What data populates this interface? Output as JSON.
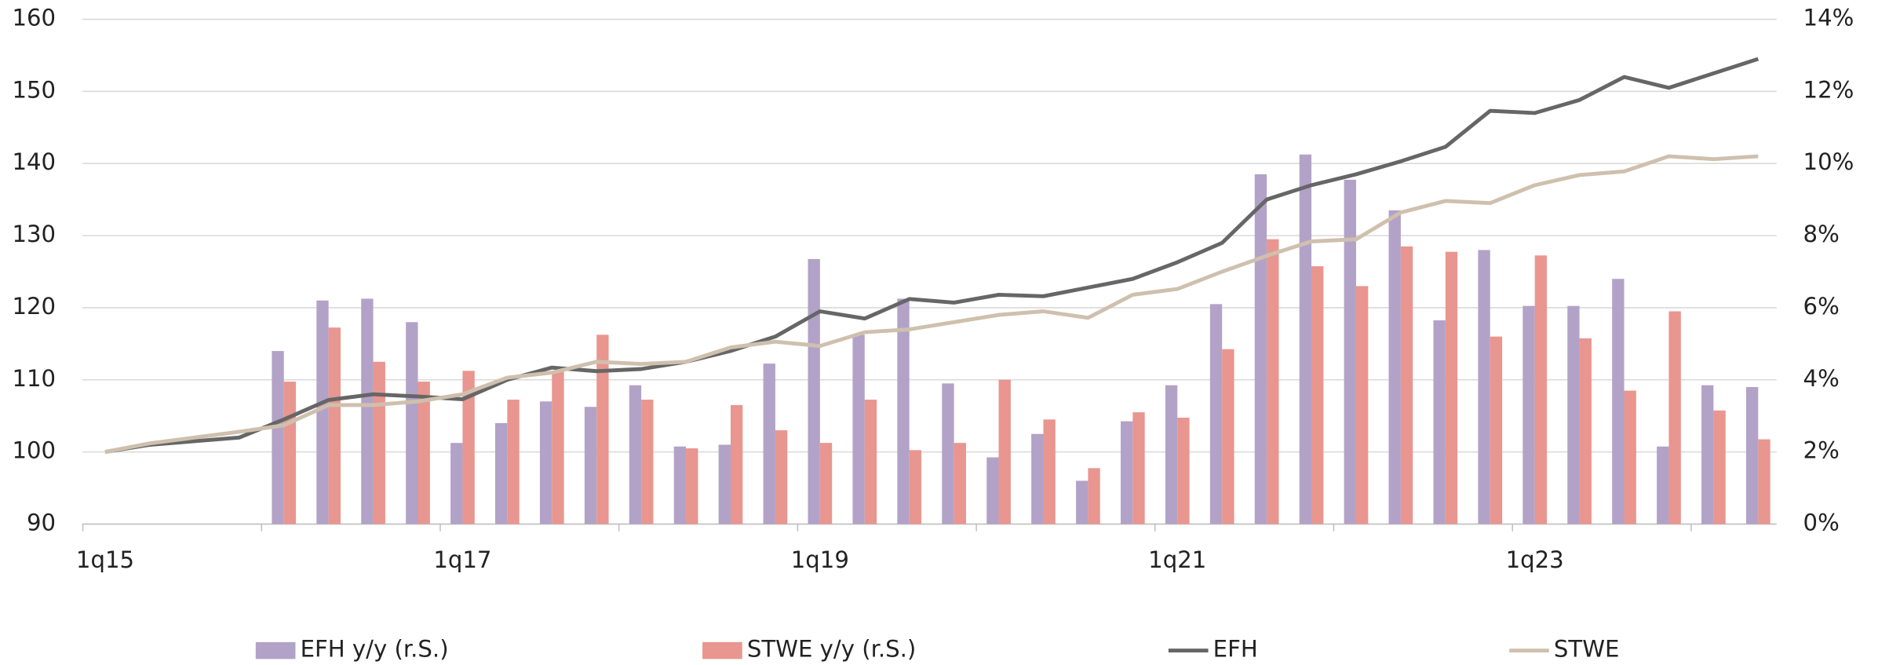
{
  "chart_data": {
    "type": "combo",
    "categories": [
      "1q15",
      null,
      null,
      null,
      null,
      null,
      null,
      null,
      "1q17",
      null,
      null,
      null,
      null,
      null,
      null,
      null,
      "1q19",
      null,
      null,
      null,
      null,
      null,
      null,
      null,
      "1q21",
      null,
      null,
      null,
      null,
      null,
      null,
      null,
      "1q23",
      null,
      null,
      null,
      null,
      null
    ],
    "ylim": [
      90,
      160
    ],
    "yticks": [
      90,
      100,
      110,
      120,
      130,
      140,
      150,
      160
    ],
    "y2lim": [
      0,
      14
    ],
    "y2ticks": [
      {
        "value": 0,
        "label": "0%"
      },
      {
        "value": 2,
        "label": "2%"
      },
      {
        "value": 4,
        "label": "4%"
      },
      {
        "value": 6,
        "label": "6%"
      },
      {
        "value": 8,
        "label": "8%"
      },
      {
        "value": 10,
        "label": "10%"
      },
      {
        "value": 12,
        "label": "12%"
      },
      {
        "value": 14,
        "label": "14%"
      }
    ],
    "grid": true,
    "legend": "bottom",
    "series": [
      {
        "name": "EFH y/y (r.S.)",
        "type": "bar",
        "axis": "y2",
        "color": "#b3a2c7",
        "values": [
          null,
          null,
          null,
          null,
          4.8,
          6.2,
          6.25,
          5.6,
          2.25,
          2.8,
          3.4,
          3.25,
          3.85,
          2.15,
          2.2,
          4.45,
          7.35,
          5.25,
          6.25,
          3.9,
          1.85,
          2.5,
          1.2,
          2.85,
          3.85,
          6.1,
          9.7,
          10.25,
          9.55,
          8.7,
          5.65,
          7.6,
          6.05,
          6.05,
          6.8,
          2.15,
          3.85,
          3.8
        ]
      },
      {
        "name": "STWE y/y (r.S.)",
        "type": "bar",
        "axis": "y2",
        "color": "#e8968f",
        "values": [
          null,
          null,
          null,
          null,
          3.95,
          5.45,
          4.5,
          3.95,
          4.25,
          3.45,
          4.25,
          5.25,
          3.45,
          2.1,
          3.3,
          2.6,
          2.25,
          3.45,
          2.05,
          2.25,
          4.0,
          2.9,
          1.55,
          3.1,
          2.95,
          4.85,
          7.9,
          7.15,
          6.6,
          7.7,
          7.55,
          5.2,
          7.45,
          5.15,
          3.7,
          5.9,
          3.15,
          2.35
        ]
      },
      {
        "name": "EFH",
        "type": "line",
        "color": "#666666",
        "values": [
          100,
          101,
          101.5,
          102,
          104.5,
          107.2,
          108,
          107.7,
          107.3,
          110,
          111.7,
          111.2,
          111.5,
          112.5,
          114,
          116,
          119.5,
          118.5,
          121.2,
          120.7,
          121.8,
          121.6,
          122.8,
          124,
          126.3,
          129,
          135,
          137,
          138.5,
          140.3,
          142.3,
          147.3,
          147,
          148.8,
          152,
          150.5,
          152.5,
          154.5
        ]
      },
      {
        "name": "STWE",
        "type": "line",
        "color": "#cfc0ae",
        "values": [
          100,
          101.2,
          102,
          102.8,
          103.7,
          106.5,
          106.5,
          107,
          108,
          110.3,
          111,
          112.5,
          112.2,
          112.5,
          114.5,
          115.3,
          114.7,
          116.6,
          117,
          118,
          119,
          119.5,
          118.6,
          121.8,
          122.6,
          125,
          127.2,
          129.2,
          129.5,
          133.2,
          134.8,
          134.5,
          137,
          138.4,
          138.9,
          141,
          140.6,
          141
        ]
      }
    ]
  }
}
